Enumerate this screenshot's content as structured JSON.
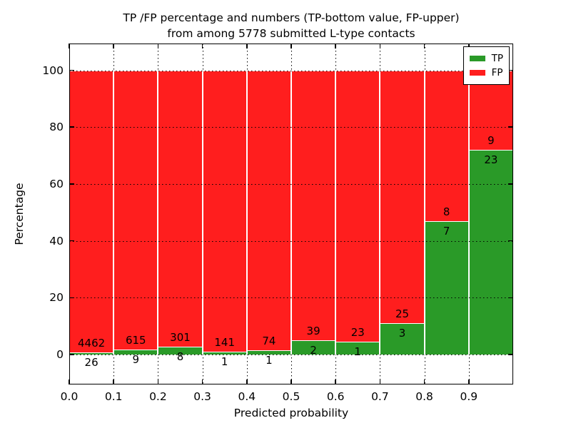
{
  "figure": {
    "title_line1": "TP /FP percentage and numbers (TP-bottom value, FP-upper)",
    "title_line2": "from among 5778 submitted L-type contacts"
  },
  "chart_data": {
    "type": "bar",
    "stacked": true,
    "title": "TP /FP percentage and numbers (TP-bottom value, FP-upper) from among 5778 submitted L-type contacts",
    "xlabel": "Predicted probability",
    "ylabel": "Percentage",
    "total_submitted_contacts": 5778,
    "bin_start_values": [
      0.0,
      0.1,
      0.2,
      0.3,
      0.4,
      0.5,
      0.6,
      0.7,
      0.8,
      0.9
    ],
    "bin_width": 0.1,
    "x_tick_labels": [
      "0.0",
      "0.1",
      "0.2",
      "0.3",
      "0.4",
      "0.5",
      "0.6",
      "0.7",
      "0.8",
      "0.9"
    ],
    "y_ticks": [
      0,
      20,
      40,
      60,
      80,
      100
    ],
    "xlim": [
      0.0,
      1.0
    ],
    "ylim": [
      -10.5,
      109.8
    ],
    "grid": "dotted",
    "bar_heights_are_percent_of_bin_total": true,
    "series": [
      {
        "name": "TP",
        "color": "#2a9a28",
        "counts": [
          26,
          9,
          8,
          1,
          1,
          2,
          1,
          3,
          7,
          23
        ],
        "percent_of_bin": [
          0.58,
          1.44,
          2.59,
          0.7,
          1.33,
          4.88,
          4.17,
          10.71,
          46.67,
          71.88
        ]
      },
      {
        "name": "FP",
        "color": "#ff1e1e",
        "counts": [
          4462,
          615,
          301,
          141,
          74,
          39,
          23,
          25,
          8,
          9
        ],
        "percent_of_bin": [
          99.42,
          98.56,
          97.41,
          99.3,
          98.67,
          95.12,
          95.83,
          89.29,
          53.33,
          28.12
        ]
      }
    ],
    "legend": {
      "position": "upper right",
      "entries": [
        "TP",
        "FP"
      ]
    }
  }
}
